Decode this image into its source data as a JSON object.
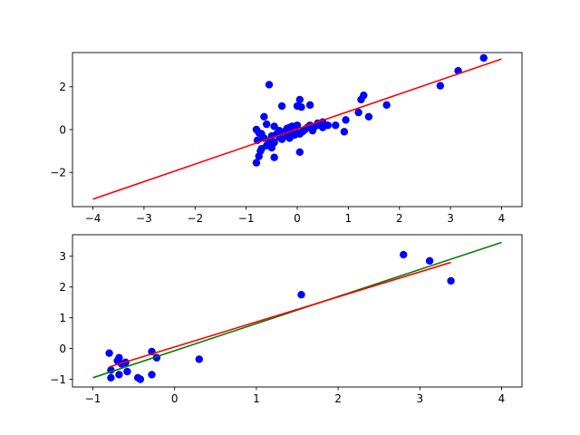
{
  "chart_data": [
    {
      "type": "scatter",
      "xlim": [
        -4.4,
        4.4
      ],
      "ylim": [
        -3.6,
        3.6
      ],
      "x_ticks": [
        -4,
        -3,
        -2,
        -1,
        0,
        1,
        2,
        3,
        4
      ],
      "x_tick_labels": [
        "−4",
        "−3",
        "−2",
        "−1",
        "0",
        "1",
        "2",
        "3",
        "4"
      ],
      "y_ticks": [
        -2,
        0,
        2
      ],
      "y_tick_labels": [
        "−2",
        "0",
        "2"
      ],
      "grid": false,
      "legend": "none",
      "series": [
        {
          "kind": "points",
          "color": "#0000ff",
          "points": [
            [
              -0.8,
              -1.55
            ],
            [
              -0.75,
              -1.25
            ],
            [
              -0.72,
              -1.0
            ],
            [
              -0.7,
              -0.9
            ],
            [
              -0.78,
              -0.5
            ],
            [
              -0.65,
              -0.4
            ],
            [
              -0.6,
              -0.75
            ],
            [
              -0.55,
              -0.55
            ],
            [
              -0.5,
              -0.85
            ],
            [
              -0.45,
              -0.6
            ],
            [
              -0.5,
              -0.3
            ],
            [
              -0.4,
              -0.2
            ],
            [
              -0.35,
              -0.35
            ],
            [
              -0.3,
              -0.45
            ],
            [
              -0.25,
              -0.1
            ],
            [
              -0.2,
              -0.3
            ],
            [
              -0.15,
              -0.4
            ],
            [
              -0.1,
              -0.2
            ],
            [
              -0.05,
              -0.25
            ],
            [
              0.0,
              -0.15
            ],
            [
              0.05,
              -0.2
            ],
            [
              0.1,
              -0.1
            ],
            [
              0.15,
              0.0
            ],
            [
              0.2,
              0.1
            ],
            [
              0.25,
              0.2
            ],
            [
              0.3,
              0.05
            ],
            [
              0.35,
              0.15
            ],
            [
              0.4,
              0.3
            ],
            [
              0.45,
              0.2
            ],
            [
              0.5,
              0.1
            ],
            [
              -0.8,
              0.0
            ],
            [
              -0.7,
              -0.2
            ],
            [
              -0.6,
              0.25
            ],
            [
              -0.45,
              0.15
            ],
            [
              -0.3,
              1.1
            ],
            [
              -0.55,
              2.1
            ],
            [
              -0.65,
              0.6
            ],
            [
              0.0,
              1.1
            ],
            [
              0.05,
              1.4
            ],
            [
              0.08,
              1.05
            ],
            [
              0.25,
              1.15
            ],
            [
              -0.1,
              0.15
            ],
            [
              0.0,
              0.2
            ],
            [
              -0.15,
              0.1
            ],
            [
              0.05,
              -1.05
            ],
            [
              -0.45,
              -1.3
            ],
            [
              0.3,
              -0.05
            ],
            [
              0.5,
              0.35
            ],
            [
              0.75,
              0.2
            ],
            [
              0.95,
              0.45
            ],
            [
              0.92,
              -0.1
            ],
            [
              1.2,
              0.8
            ],
            [
              1.25,
              1.4
            ],
            [
              1.3,
              1.6
            ],
            [
              1.4,
              0.6
            ],
            [
              1.75,
              1.15
            ],
            [
              2.8,
              2.05
            ],
            [
              3.15,
              2.75
            ],
            [
              3.65,
              3.35
            ],
            [
              -0.75,
              -0.15
            ],
            [
              -0.2,
              0.05
            ],
            [
              0.12,
              -0.05
            ],
            [
              -0.35,
              -0.05
            ],
            [
              0.6,
              0.2
            ]
          ]
        },
        {
          "kind": "line",
          "color": "#ff0000",
          "x": [
            -4,
            4
          ],
          "y": [
            -3.25,
            3.3
          ]
        }
      ]
    },
    {
      "type": "scatter",
      "xlim": [
        -1.25,
        4.25
      ],
      "ylim": [
        -1.25,
        3.7
      ],
      "x_ticks": [
        -1,
        0,
        1,
        2,
        3,
        4
      ],
      "x_tick_labels": [
        "−1",
        "0",
        "1",
        "2",
        "3",
        "4"
      ],
      "y_ticks": [
        -1,
        0,
        1,
        2,
        3
      ],
      "y_tick_labels": [
        "−1",
        "0",
        "1",
        "2",
        "3"
      ],
      "grid": false,
      "legend": "none",
      "series": [
        {
          "kind": "points",
          "color": "#0000ff",
          "points": [
            [
              -0.8,
              -0.15
            ],
            [
              -0.78,
              -0.7
            ],
            [
              -0.78,
              -0.95
            ],
            [
              -0.7,
              -0.4
            ],
            [
              -0.68,
              -0.3
            ],
            [
              -0.65,
              -0.5
            ],
            [
              -0.68,
              -0.85
            ],
            [
              -0.6,
              -0.45
            ],
            [
              -0.58,
              -0.75
            ],
            [
              -0.45,
              -0.95
            ],
            [
              -0.42,
              -1.0
            ],
            [
              -0.28,
              -0.85
            ],
            [
              -0.28,
              -0.1
            ],
            [
              -0.22,
              -0.3
            ],
            [
              0.3,
              -0.35
            ],
            [
              1.55,
              1.75
            ],
            [
              2.8,
              3.05
            ],
            [
              3.12,
              2.85
            ],
            [
              3.38,
              2.2
            ]
          ]
        },
        {
          "kind": "line",
          "color": "#008000",
          "x": [
            -1,
            4
          ],
          "y": [
            -0.95,
            3.45
          ]
        },
        {
          "kind": "line",
          "color": "#ff0000",
          "x": [
            -0.8,
            3.38
          ],
          "y": [
            -0.6,
            2.8
          ]
        }
      ]
    }
  ]
}
